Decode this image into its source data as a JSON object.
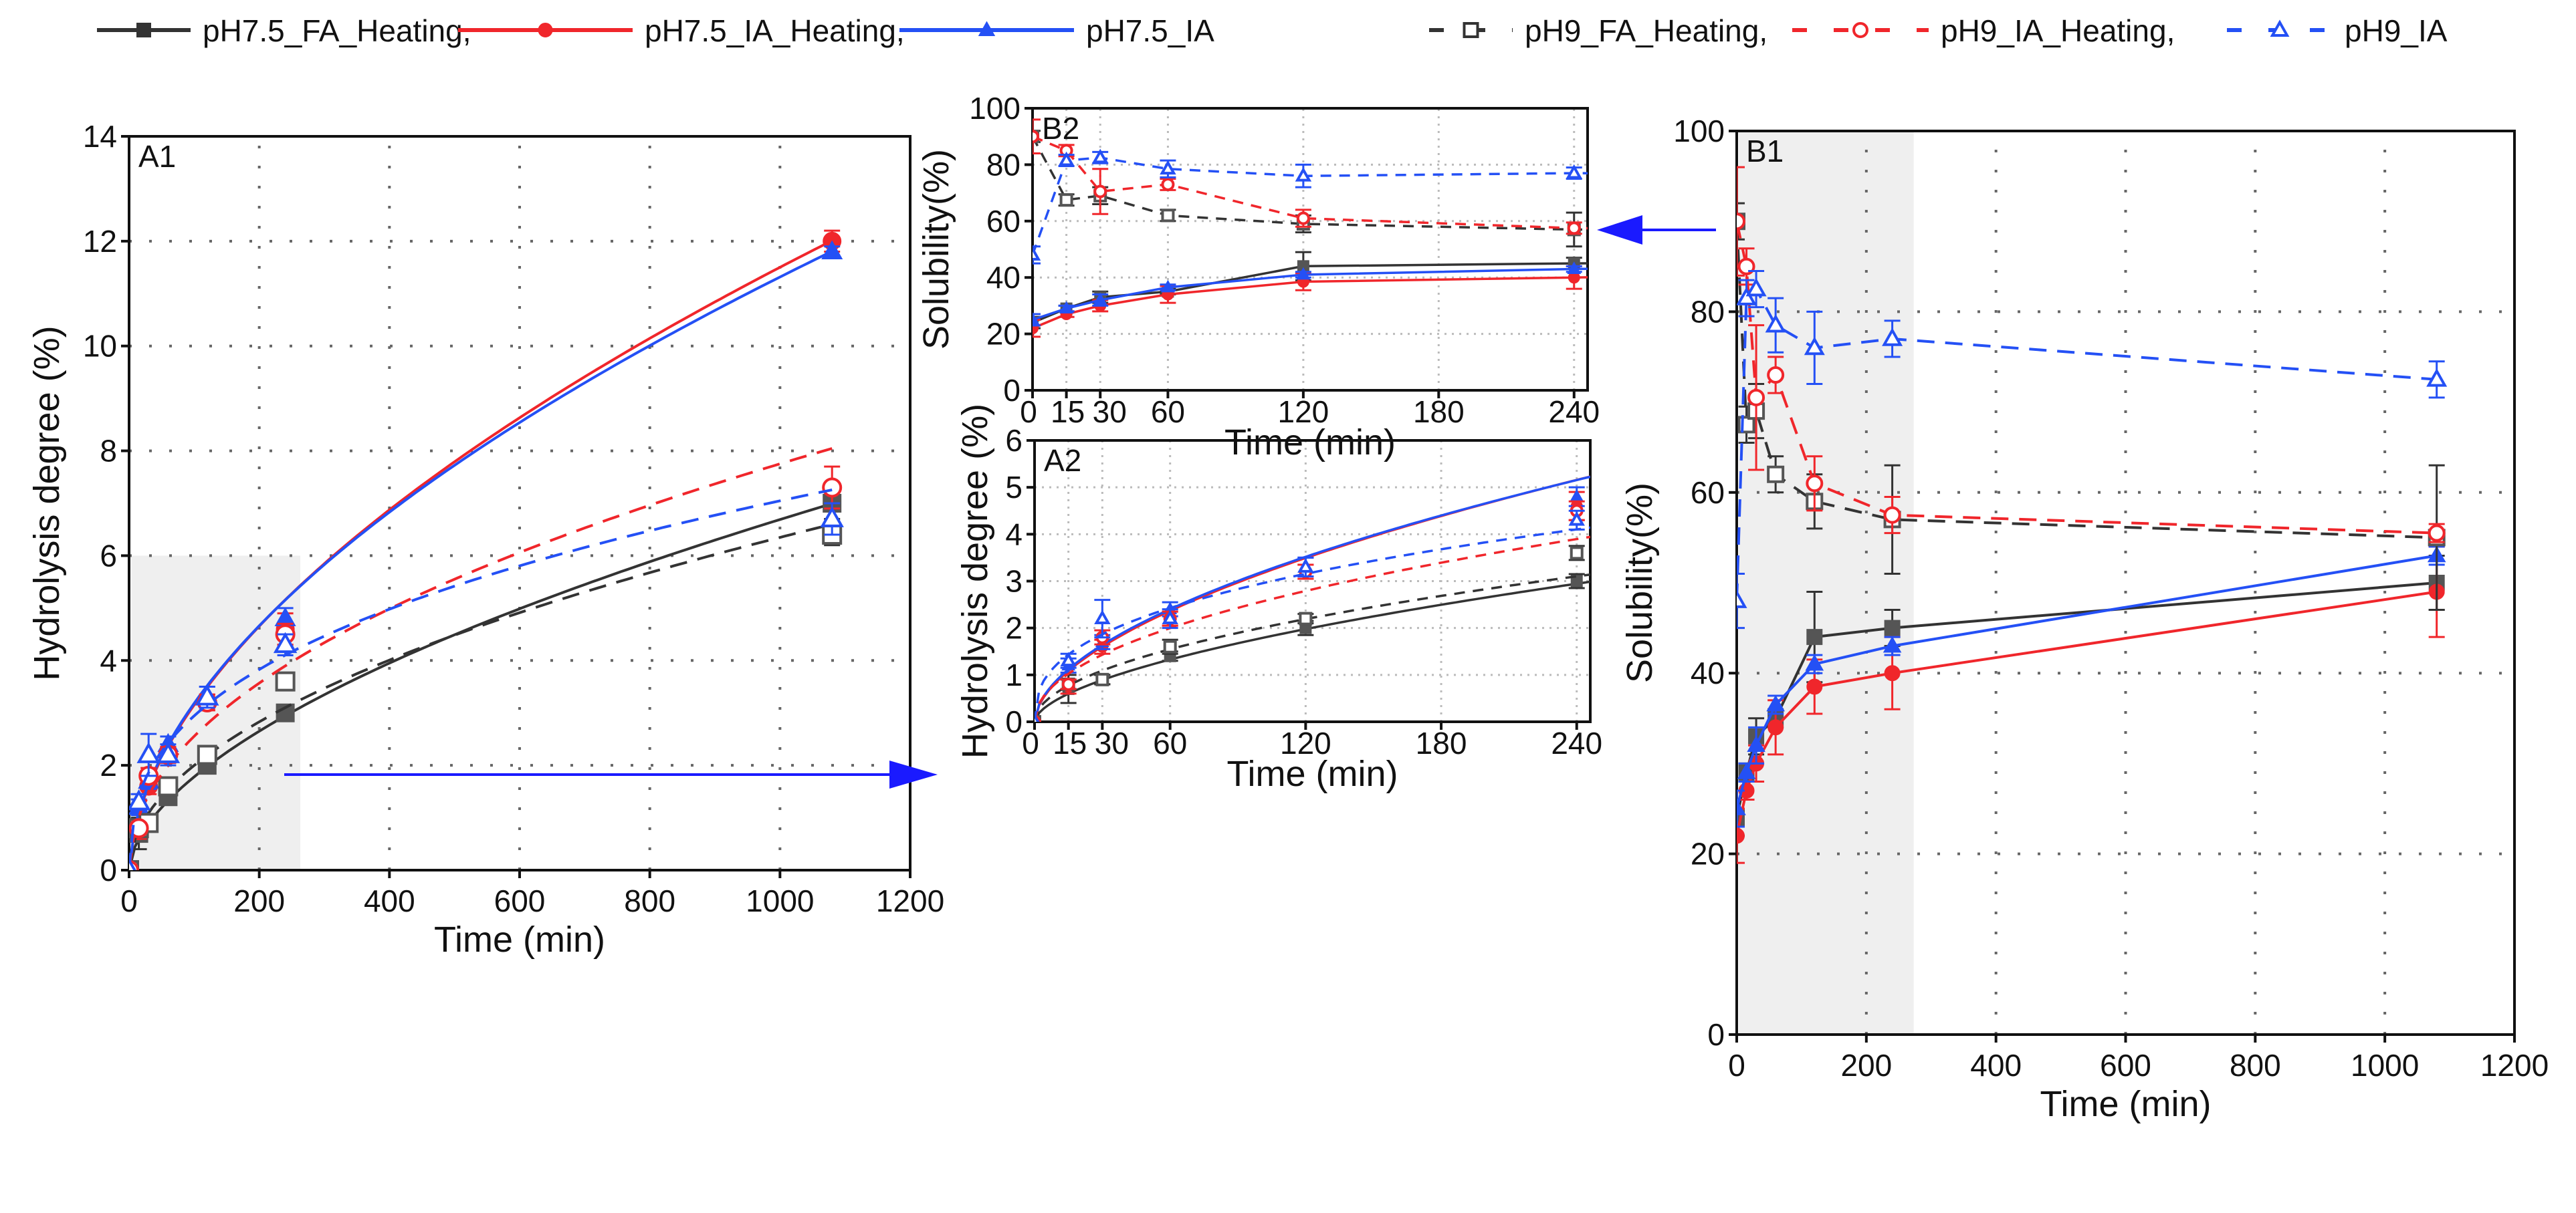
{
  "chart_data": {
    "type": "line",
    "time": [
      0,
      15,
      30,
      60,
      120,
      240,
      1080
    ],
    "legend": [
      {
        "key": "fa75",
        "label": "pH7.5_FA_Heating,",
        "color": "#333333",
        "dash": false,
        "marker": "square",
        "filled": true
      },
      {
        "key": "iah75",
        "label": "pH7.5_IA_Heating,",
        "color": "#f0262b",
        "dash": false,
        "marker": "circle",
        "filled": true
      },
      {
        "key": "ia75",
        "label": "pH7.5_IA",
        "color": "#2450f5",
        "dash": false,
        "marker": "triangle",
        "filled": true
      },
      {
        "key": "fa9",
        "label": "pH9_FA_Heating,",
        "color": "#333333",
        "dash": true,
        "marker": "square",
        "filled": false
      },
      {
        "key": "iah9",
        "label": "pH9_IA_Heating,",
        "color": "#f0262b",
        "dash": true,
        "marker": "circle",
        "filled": false
      },
      {
        "key": "ia9",
        "label": "pH9_IA",
        "color": "#2450f5",
        "dash": true,
        "marker": "triangle",
        "filled": false
      }
    ],
    "hydrolysis": {
      "fa75": {
        "values": [
          0,
          0.7,
          0.9,
          1.4,
          2.0,
          3.0,
          7.0
        ],
        "err": [
          0,
          0.3,
          0.1,
          0.1,
          0.15,
          0.15,
          0.3
        ],
        "fit": {
          "model": "power",
          "a": 0.126,
          "b": 0.575
        }
      },
      "iah75": {
        "values": [
          0,
          0.75,
          1.6,
          2.2,
          3.2,
          4.6,
          12.0
        ],
        "err": [
          0,
          0.15,
          0.15,
          0.15,
          0.15,
          0.3,
          0.2
        ],
        "fit": {
          "model": "power",
          "a": 0.237,
          "b": 0.562
        }
      },
      "ia75": {
        "values": [
          0,
          1.2,
          1.7,
          2.4,
          3.3,
          4.8,
          11.8
        ],
        "err": [
          0,
          0.15,
          0.15,
          0.15,
          0.2,
          0.2,
          0.1
        ],
        "fit": {
          "model": "power",
          "a": 0.2516,
          "b": 0.551
        }
      },
      "fa9": {
        "values": [
          0,
          0.8,
          0.9,
          1.6,
          2.2,
          3.6,
          6.4
        ],
        "err": [
          0,
          0.1,
          0.1,
          0.15,
          0.1,
          0.15,
          0.2
        ],
        "fit": {
          "model": "power",
          "a": 0.198,
          "b": 0.502
        }
      },
      "iah9": {
        "values": [
          0,
          0.8,
          1.8,
          2.2,
          3.2,
          4.5,
          7.3
        ],
        "err": [
          0,
          0.1,
          0.15,
          0.15,
          0.15,
          0.2,
          0.4
        ],
        "fit": {
          "model": "power",
          "a": 0.2776,
          "b": 0.482
        }
      },
      "ia9": {
        "values": [
          0,
          1.3,
          2.2,
          2.2,
          3.3,
          4.3,
          6.7
        ],
        "err": [
          0,
          0.15,
          0.4,
          0.2,
          0.2,
          0.2,
          0.3
        ],
        "fit": {
          "model": "power",
          "a": 0.514,
          "b": 0.379
        }
      }
    },
    "solubility": {
      "fa75": {
        "values": [
          24,
          29,
          33,
          35,
          44,
          45,
          50
        ],
        "err": [
          2,
          1,
          2,
          1,
          5,
          2,
          3
        ]
      },
      "iah75": {
        "values": [
          22,
          27,
          30,
          34,
          38.5,
          40,
          49
        ],
        "err": [
          3,
          1,
          2,
          3,
          3,
          4,
          5
        ]
      },
      "ia75": {
        "values": [
          25,
          29,
          32,
          36.5,
          41,
          43,
          53
        ],
        "err": [
          2,
          1,
          2,
          1,
          1,
          1,
          1
        ]
      },
      "fa9": {
        "values": [
          90,
          67.5,
          69,
          62,
          59,
          57,
          55
        ],
        "err": [
          2,
          2,
          3,
          2,
          3,
          6,
          8
        ]
      },
      "iah9": {
        "values": [
          90,
          85,
          70.5,
          73,
          61,
          57.5,
          55.5
        ],
        "err": [
          6,
          2,
          8,
          2,
          3,
          2,
          1
        ]
      },
      "ia9": {
        "values": [
          48,
          81.5,
          82.5,
          78.5,
          76,
          77,
          72.5
        ],
        "err": [
          3,
          2,
          2,
          3,
          4,
          2,
          2
        ]
      }
    },
    "panels": [
      {
        "label": "A1",
        "metric": "hydrolysis",
        "xlabel": "Time (min)",
        "ylabel": "Hydrolysis degree (%)",
        "xlim": [
          0,
          1200
        ],
        "ylim": [
          0,
          14
        ],
        "xticks": [
          0,
          200,
          400,
          600,
          800,
          1000,
          1200
        ],
        "yticks": [
          0,
          2,
          4,
          6,
          8,
          10,
          12,
          14
        ],
        "shaded": {
          "x": [
            0,
            260
          ],
          "y": [
            0,
            6
          ]
        },
        "curve": "fit",
        "grid": true
      },
      {
        "label": "B2",
        "metric": "solubility",
        "xlabel": "Time (min)",
        "ylabel": "Solubility(%)",
        "xlim": [
          0,
          246
        ],
        "ylim": [
          0,
          100
        ],
        "xticks": [
          0,
          15,
          30,
          60,
          120,
          180,
          240
        ],
        "xticklabels": [
          "0",
          "15",
          "30",
          "60",
          "120",
          "180",
          "240"
        ],
        "yticks": [
          0,
          20,
          40,
          60,
          80,
          100
        ],
        "curve": "connect",
        "grid": true
      },
      {
        "label": "A2",
        "metric": "hydrolysis",
        "xlabel": "Time (min)",
        "ylabel": "Hydrolysis degree (%)",
        "xlim": [
          0,
          246
        ],
        "ylim": [
          0,
          6
        ],
        "xticks": [
          0,
          15,
          30,
          60,
          120,
          180,
          240
        ],
        "xticklabels": [
          "0",
          "15",
          "30",
          "60",
          "120",
          "180",
          "240"
        ],
        "yticks": [
          0,
          1,
          2,
          3,
          4,
          5,
          6
        ],
        "curve": "fit",
        "grid": true
      },
      {
        "label": "B1",
        "metric": "solubility",
        "xlabel": "Time (min)",
        "ylabel": "Solubility(%)",
        "xlim": [
          0,
          1200
        ],
        "ylim": [
          0,
          100
        ],
        "xticks": [
          0,
          200,
          400,
          600,
          800,
          1000,
          1200
        ],
        "yticks": [
          0,
          20,
          40,
          60,
          80,
          100
        ],
        "shaded": {
          "x": [
            0,
            270
          ],
          "y": [
            0,
            100
          ]
        },
        "curve": "connect",
        "grid": true
      }
    ],
    "arrow_color": "#1a1aff"
  }
}
